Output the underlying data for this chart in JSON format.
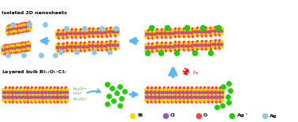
{
  "bg_color": "#ffffff",
  "bi_color": "#FFD700",
  "cl_color": "#9B59B6",
  "o_color": "#FF4444",
  "agplus_color": "#22CC00",
  "ag_color": "#90C8E0",
  "arrow_color": "#5BB8F5",
  "red_arrow_color": "#EE1111",
  "text_layered": "Layered bulk Bi$_{12}$O$_{17}$Cl$_2$",
  "text_isolated": "Isolated 2D nanosheets",
  "label_bi": "Bi",
  "label_cl": "Cl",
  "label_o": "O",
  "label_agplus": "Ag$^+$",
  "label_ag": "Ag",
  "layer_label1": "Bi$_{12}$O$_{17}^{2-}$",
  "layer_label2": "HCl$_2^-$",
  "layer_label3": "Bi$_{12}$O$_{17}^{2-}$"
}
